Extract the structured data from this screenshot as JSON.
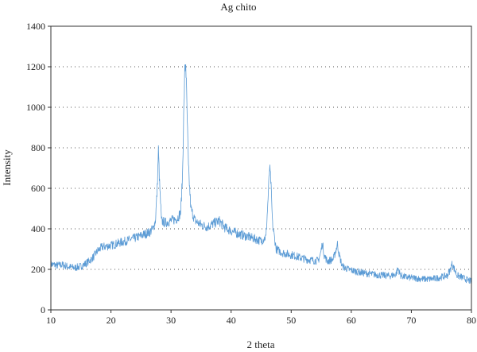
{
  "chart_data": {
    "type": "line",
    "title": "Ag chito",
    "xlabel": "2 theta",
    "ylabel": "Intensity",
    "xlim": [
      10,
      80
    ],
    "ylim": [
      0,
      1400
    ],
    "xticks": [
      10,
      20,
      30,
      40,
      50,
      60,
      70,
      80
    ],
    "yticks": [
      0,
      200,
      400,
      600,
      800,
      1000,
      1200,
      1400
    ],
    "grid": "horizontal dotted",
    "legend": "none",
    "series": [
      {
        "color": "#5b9bd5",
        "points": [
          [
            10,
            225
          ],
          [
            11,
            220
          ],
          [
            12,
            222
          ],
          [
            13,
            212
          ],
          [
            14,
            208
          ],
          [
            15,
            215
          ],
          [
            16,
            232
          ],
          [
            17,
            258
          ],
          [
            17.8,
            292
          ],
          [
            18.5,
            310
          ],
          [
            19.5,
            315
          ],
          [
            20.5,
            322
          ],
          [
            21.5,
            332
          ],
          [
            22.5,
            340
          ],
          [
            23.5,
            350
          ],
          [
            24.5,
            360
          ],
          [
            25.5,
            372
          ],
          [
            26.5,
            385
          ],
          [
            27.0,
            400
          ],
          [
            27.4,
            440
          ],
          [
            27.7,
            600
          ],
          [
            27.9,
            790
          ],
          [
            28.1,
            620
          ],
          [
            28.4,
            440
          ],
          [
            29,
            430
          ],
          [
            30,
            440
          ],
          [
            31,
            450
          ],
          [
            31.6,
            480
          ],
          [
            31.9,
            650
          ],
          [
            32.1,
            950
          ],
          [
            32.3,
            1180
          ],
          [
            32.45,
            1230
          ],
          [
            32.6,
            1050
          ],
          [
            32.9,
            700
          ],
          [
            33.3,
            500
          ],
          [
            34,
            440
          ],
          [
            35,
            420
          ],
          [
            36,
            410
          ],
          [
            37,
            425
          ],
          [
            38,
            440
          ],
          [
            39,
            405
          ],
          [
            40,
            390
          ],
          [
            41,
            378
          ],
          [
            42,
            368
          ],
          [
            43,
            360
          ],
          [
            44,
            350
          ],
          [
            45,
            340
          ],
          [
            45.8,
            360
          ],
          [
            46.1,
            520
          ],
          [
            46.4,
            700
          ],
          [
            46.6,
            640
          ],
          [
            46.9,
            420
          ],
          [
            47.5,
            300
          ],
          [
            48.5,
            282
          ],
          [
            49.5,
            275
          ],
          [
            50.5,
            268
          ],
          [
            51.5,
            258
          ],
          [
            52.5,
            250
          ],
          [
            53.5,
            245
          ],
          [
            54.5,
            242
          ],
          [
            54.9,
            280
          ],
          [
            55.2,
            330
          ],
          [
            55.5,
            270
          ],
          [
            56,
            240
          ],
          [
            57,
            250
          ],
          [
            57.4,
            290
          ],
          [
            57.7,
            325
          ],
          [
            58,
            270
          ],
          [
            58.5,
            215
          ],
          [
            59.5,
            200
          ],
          [
            60.5,
            192
          ],
          [
            61.5,
            185
          ],
          [
            62.5,
            180
          ],
          [
            63.5,
            176
          ],
          [
            64.5,
            172
          ],
          [
            65.5,
            170
          ],
          [
            66.5,
            168
          ],
          [
            67.4,
            175
          ],
          [
            67.8,
            205
          ],
          [
            68.2,
            170
          ],
          [
            69,
            162
          ],
          [
            70,
            158
          ],
          [
            71,
            155
          ],
          [
            72,
            152
          ],
          [
            73,
            152
          ],
          [
            74,
            155
          ],
          [
            75,
            162
          ],
          [
            76,
            170
          ],
          [
            76.5,
            200
          ],
          [
            76.8,
            230
          ],
          [
            77.1,
            205
          ],
          [
            77.6,
            170
          ],
          [
            78.5,
            160
          ],
          [
            79.5,
            145
          ],
          [
            80,
            140
          ]
        ]
      }
    ]
  }
}
